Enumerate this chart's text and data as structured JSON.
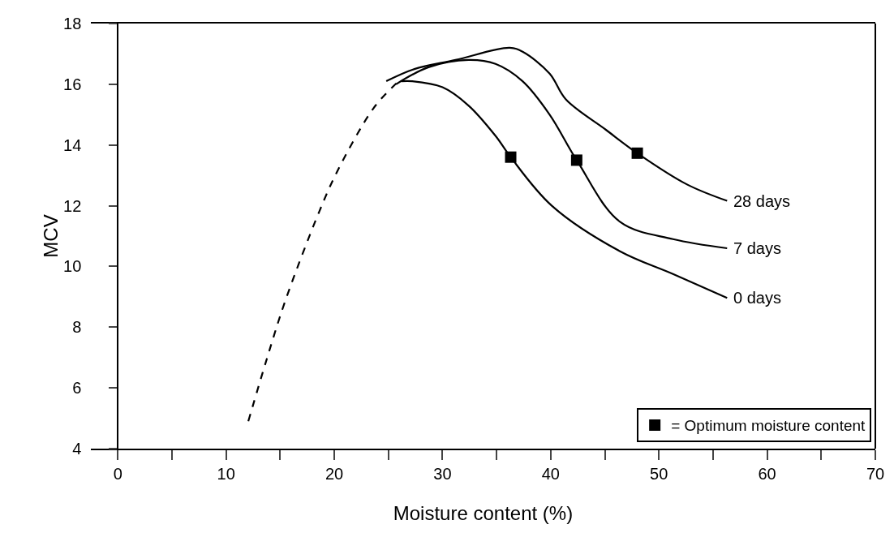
{
  "chart_data": {
    "type": "line",
    "xlabel": "Moisture content (%)",
    "ylabel": "MCV",
    "xlim": [
      -2.5,
      70
    ],
    "ylim": [
      4,
      18
    ],
    "xticks": [
      0,
      {
        "value": 5,
        "label": null
      },
      10,
      {
        "value": 15,
        "label": null
      },
      20,
      {
        "value": 25,
        "label": null
      },
      30,
      {
        "value": 35,
        "label": null
      },
      40,
      {
        "value": 45,
        "label": null
      },
      50,
      {
        "value": 55,
        "label": null
      },
      60,
      {
        "value": 65,
        "label": null
      },
      70
    ],
    "yticks": [
      4,
      6,
      8,
      10,
      12,
      14,
      16,
      18
    ],
    "grid": false,
    "legend": "bottom right",
    "line_style": "solid",
    "marker": "none",
    "series": [
      {
        "line_style": "dashed",
        "color": "#000000",
        "x": [
          12.05,
          13.8,
          15.5,
          18.6,
          20.3,
          23.6,
          25.5,
          25.9
        ],
        "values": [
          4.9,
          7.0,
          8.9,
          11.8,
          13.15,
          15.2,
          15.95,
          16.08
        ]
      },
      {
        "name": "0 days",
        "color": "#000000",
        "x": [
          26.2,
          27.2,
          30.0,
          32.4,
          34.9,
          36.3,
          40.1,
          46.4,
          51.3,
          56.3
        ],
        "values": [
          16.1,
          16.1,
          15.9,
          15.3,
          14.3,
          13.6,
          12.0,
          10.5,
          9.75,
          8.96
        ]
      },
      {
        "name": "7 days",
        "color": "#000000",
        "x": [
          25.7,
          28.7,
          32.4,
          34.9,
          37.4,
          39.9,
          42.4,
          46.4,
          51.3,
          56.3
        ],
        "values": [
          16.0,
          16.56,
          16.8,
          16.67,
          16.1,
          15.0,
          13.5,
          11.47,
          10.9,
          10.6
        ]
      },
      {
        "name": "28 days",
        "color": "#000000",
        "x": [
          24.8,
          27.4,
          31.2,
          36.2,
          37.4,
          39.9,
          41.4,
          45.1,
          48.0,
          52.6,
          56.3
        ],
        "values": [
          16.1,
          16.5,
          16.8,
          17.2,
          17.07,
          16.35,
          15.5,
          14.5,
          13.73,
          12.7,
          12.16
        ]
      },
      {
        "type": "scatter",
        "name": "= Optimum moisture content",
        "marker": "square",
        "color": "#000000",
        "x": [
          36.3,
          42.4,
          48.0
        ],
        "values": [
          13.6,
          13.5,
          13.73
        ]
      }
    ]
  }
}
